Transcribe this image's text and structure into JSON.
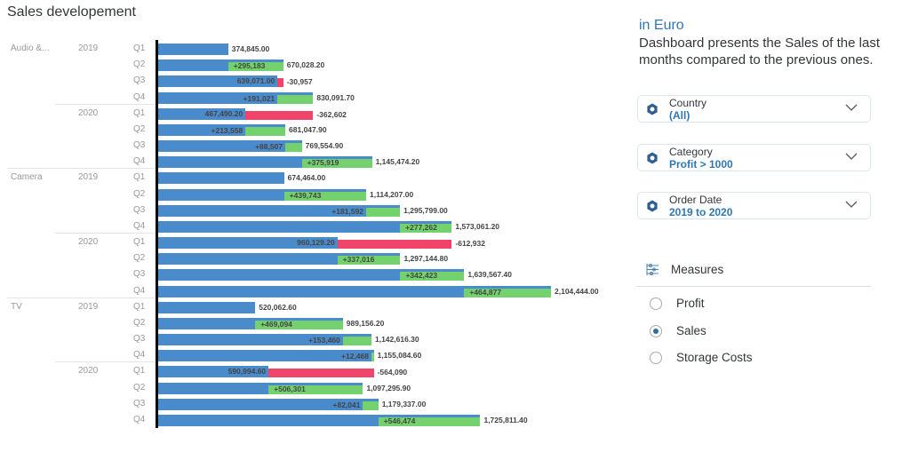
{
  "title": "Sales developement",
  "colors": {
    "base": "#4a8bcb",
    "increase": "#73d16e",
    "decrease": "#f0446a",
    "accent": "#2f78b5"
  },
  "chart_data": {
    "type": "bar",
    "orientation": "horizontal waterfall",
    "measure": "Sales",
    "rows": [
      {
        "category": "Audio &...",
        "year": "2019",
        "quarter": "Q1",
        "value": 374845.0,
        "delta": null
      },
      {
        "category": "",
        "year": "",
        "quarter": "Q2",
        "value": 670028.2,
        "delta": 295183
      },
      {
        "category": "",
        "year": "",
        "quarter": "Q3",
        "value": 639071.0,
        "delta": -30957
      },
      {
        "category": "",
        "year": "",
        "quarter": "Q4",
        "value": 830091.7,
        "delta": 191021
      },
      {
        "category": "",
        "year": "2020",
        "quarter": "Q1",
        "value": 467490.2,
        "delta": -362602
      },
      {
        "category": "",
        "year": "",
        "quarter": "Q2",
        "value": 681047.9,
        "delta": 213558
      },
      {
        "category": "",
        "year": "",
        "quarter": "Q3",
        "value": 769554.9,
        "delta": 88507
      },
      {
        "category": "",
        "year": "",
        "quarter": "Q4",
        "value": 1145474.2,
        "delta": 375919
      },
      {
        "category": "Camera",
        "year": "2019",
        "quarter": "Q1",
        "value": 674464.0,
        "delta": null
      },
      {
        "category": "",
        "year": "",
        "quarter": "Q2",
        "value": 1114207.0,
        "delta": 439743
      },
      {
        "category": "",
        "year": "",
        "quarter": "Q3",
        "value": 1295799.0,
        "delta": 181592
      },
      {
        "category": "",
        "year": "",
        "quarter": "Q4",
        "value": 1573061.2,
        "delta": 277262
      },
      {
        "category": "",
        "year": "2020",
        "quarter": "Q1",
        "value": 960129.2,
        "delta": -612932
      },
      {
        "category": "",
        "year": "",
        "quarter": "Q2",
        "value": 1297144.8,
        "delta": 337016
      },
      {
        "category": "",
        "year": "",
        "quarter": "Q3",
        "value": 1639567.4,
        "delta": 342423
      },
      {
        "category": "",
        "year": "",
        "quarter": "Q4",
        "value": 2104444.0,
        "delta": 464877
      },
      {
        "category": "TV",
        "year": "2019",
        "quarter": "Q1",
        "value": 520062.6,
        "delta": null
      },
      {
        "category": "",
        "year": "",
        "quarter": "Q2",
        "value": 989156.2,
        "delta": 469094
      },
      {
        "category": "",
        "year": "",
        "quarter": "Q3",
        "value": 1142616.3,
        "delta": 153460
      },
      {
        "category": "",
        "year": "",
        "quarter": "Q4",
        "value": 1155084.6,
        "delta": 12468
      },
      {
        "category": "",
        "year": "2020",
        "quarter": "Q1",
        "value": 590994.6,
        "delta": -564090
      },
      {
        "category": "",
        "year": "",
        "quarter": "Q2",
        "value": 1097295.9,
        "delta": 506301
      },
      {
        "category": "",
        "year": "",
        "quarter": "Q3",
        "value": 1179337.0,
        "delta": 82041
      },
      {
        "category": "",
        "year": "",
        "quarter": "Q4",
        "value": 1725811.4,
        "delta": 546474
      }
    ]
  },
  "info": {
    "unit": "in Euro",
    "description": "Dashboard presents the Sales of the last months compared to the previous ones."
  },
  "filters": [
    {
      "label": "Country",
      "value": "(All)",
      "icon": "filter-hexagon-icon"
    },
    {
      "label": "Category",
      "value": "Profit > 1000",
      "icon": "filter-hexagon-icon"
    },
    {
      "label": "Order Date",
      "value": "2019 to 2020",
      "icon": "filter-hexagon-icon"
    }
  ],
  "measures": {
    "title": "Measures",
    "options": [
      {
        "label": "Profit",
        "selected": false
      },
      {
        "label": "Sales",
        "selected": true
      },
      {
        "label": "Storage Costs",
        "selected": false
      }
    ]
  }
}
